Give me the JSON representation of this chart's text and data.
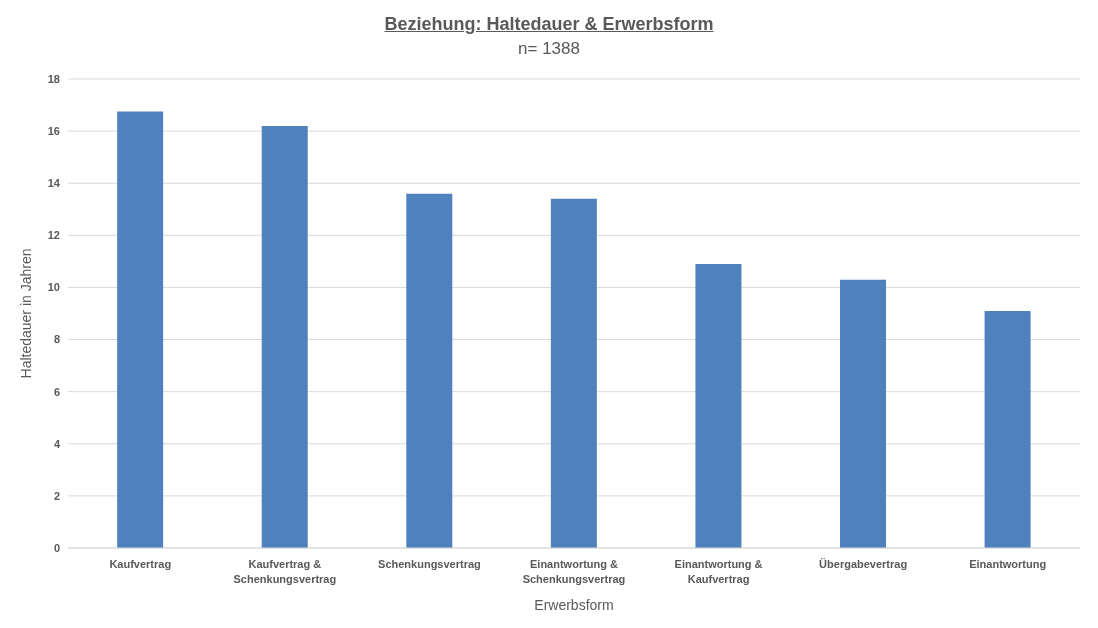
{
  "chart_data": {
    "type": "bar",
    "title": "Beziehung: Haltedauer & Erwerbsform",
    "subtitle": "n= 1388",
    "xlabel": "Erwerbsform",
    "ylabel": "Haltedauer in Jahren",
    "categories": [
      "Kaufvertrag",
      "Kaufvertrag & Schenkungsvertrag",
      "Schenkungsvertrag",
      "Einantwortung & Schenkungsvertrag",
      "Einantwortung & Kaufvertrag",
      "Übergabevertrag",
      "Einantwortung"
    ],
    "values": [
      16.75,
      16.2,
      13.6,
      13.4,
      10.9,
      10.3,
      9.1
    ],
    "color": "#4f81bd",
    "ylim": [
      0,
      18
    ],
    "yticks": [
      0,
      2,
      4,
      6,
      8,
      10,
      12,
      14,
      16,
      18
    ],
    "grid": "y",
    "legend": false
  }
}
